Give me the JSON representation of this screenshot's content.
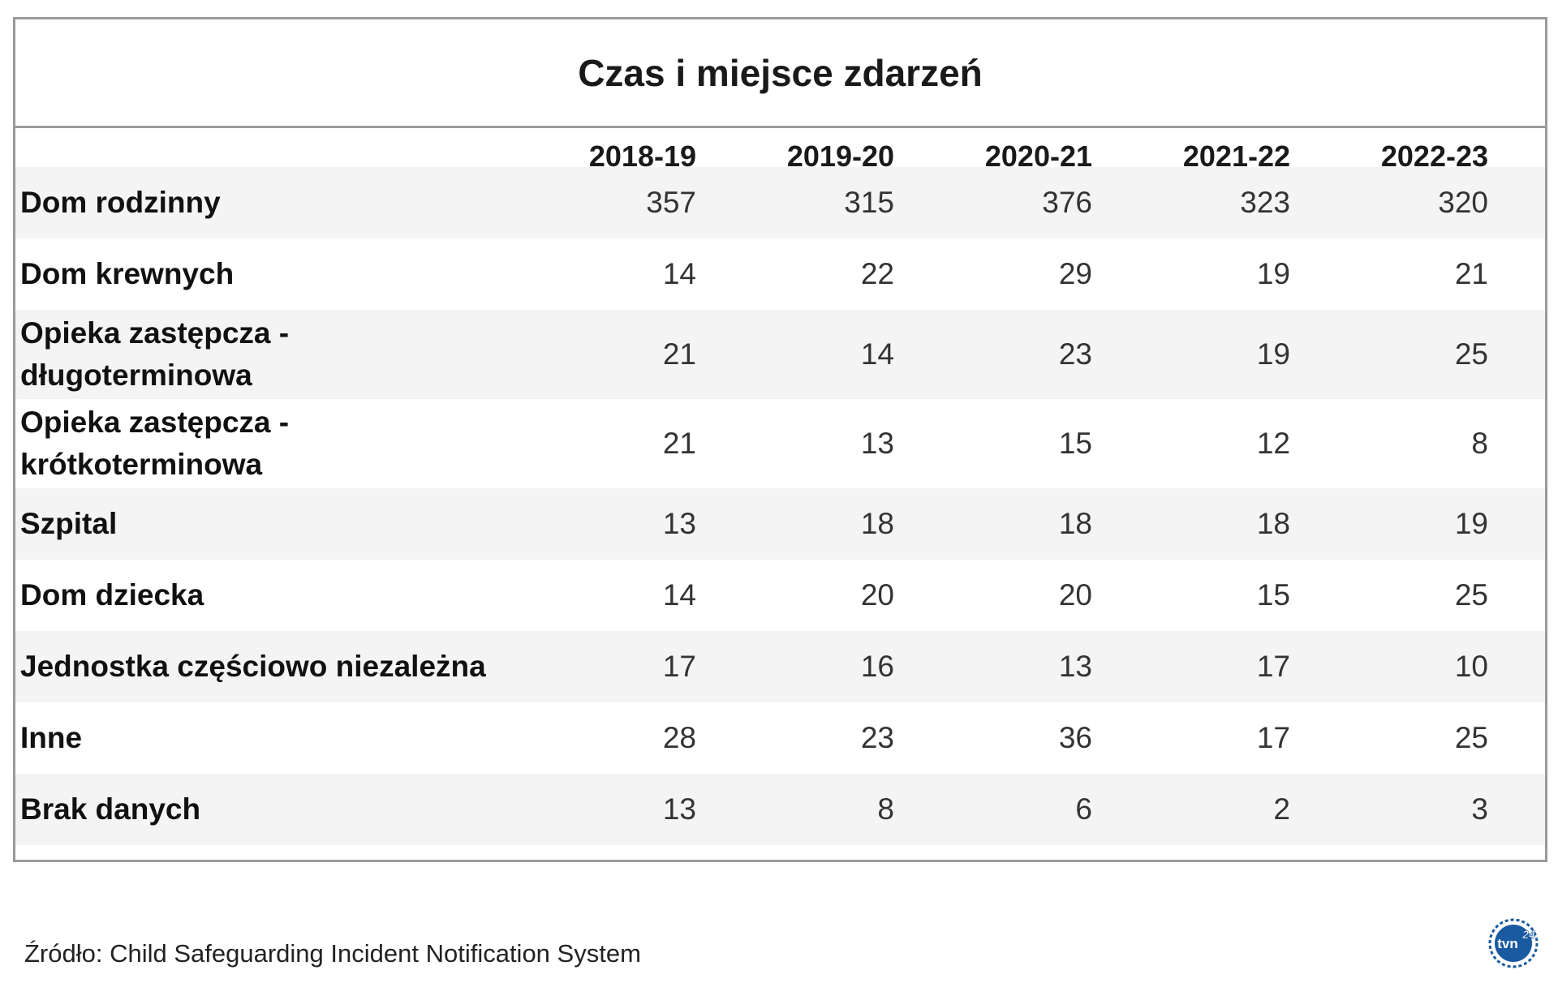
{
  "chart_data": {
    "type": "table",
    "title": "Czas i miejsce zdarzeń",
    "columns": [
      "2018-19",
      "2019-20",
      "2020-21",
      "2021-22",
      "2022-23"
    ],
    "rows": [
      {
        "label": [
          "Dom rodzinny"
        ],
        "values": [
          "357",
          "315",
          "376",
          "323",
          "320"
        ]
      },
      {
        "label": [
          "Dom krewnych"
        ],
        "values": [
          "14",
          "22",
          "29",
          "19",
          "21"
        ]
      },
      {
        "label": [
          "Opieka zastępcza -",
          "długoterminowa"
        ],
        "values": [
          "21",
          "14",
          "23",
          "19",
          "25"
        ]
      },
      {
        "label": [
          "Opieka zastępcza -",
          "krótkoterminowa"
        ],
        "values": [
          "21",
          "13",
          "15",
          "12",
          "8"
        ]
      },
      {
        "label": [
          "Szpital"
        ],
        "values": [
          "13",
          "18",
          "18",
          "18",
          "19"
        ]
      },
      {
        "label": [
          "Dom dziecka"
        ],
        "values": [
          "14",
          "20",
          "20",
          "15",
          "25"
        ]
      },
      {
        "label": [
          "Jednostka częściowo niezależna"
        ],
        "values": [
          "17",
          "16",
          "13",
          "17",
          "10"
        ]
      },
      {
        "label": [
          "Inne"
        ],
        "values": [
          "28",
          "23",
          "36",
          "17",
          "25"
        ]
      },
      {
        "label": [
          "Brak danych"
        ],
        "values": [
          "13",
          "8",
          "6",
          "2",
          "3"
        ]
      }
    ],
    "grid": false
  },
  "source": "Źródło: Child Safeguarding Incident Notification System",
  "logo": {
    "text": "tvn24",
    "icon": "tvn24-logo-icon",
    "color": "#1a5aa0"
  },
  "colors": {
    "border": "#9a9a9a",
    "row_shade": "#f4f4f4"
  }
}
